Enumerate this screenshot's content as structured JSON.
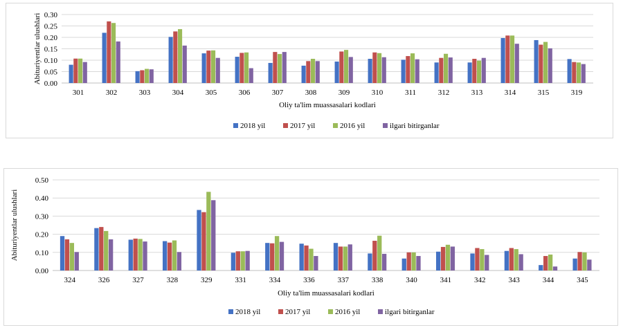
{
  "chart_data": [
    {
      "type": "bar",
      "title": "",
      "xlabel": "Oliy ta'lim muassasalari kodlari",
      "ylabel": "Abituriyentlar ulushlari",
      "ylim": [
        0,
        0.3
      ],
      "yticks": [
        "0.00",
        "0.05",
        "0.10",
        "0.15",
        "0.20",
        "0.25",
        "0.30"
      ],
      "grid": true,
      "legend_position": "bottom",
      "categories": [
        "301",
        "302",
        "303",
        "304",
        "305",
        "306",
        "307",
        "308",
        "309",
        "310",
        "311",
        "312",
        "313",
        "314",
        "315",
        "319"
      ],
      "series": [
        {
          "name": "2018 yil",
          "color": "#4472c4",
          "values": [
            0.08,
            0.22,
            0.052,
            0.202,
            0.13,
            0.115,
            0.088,
            0.076,
            0.094,
            0.106,
            0.102,
            0.09,
            0.09,
            0.197,
            0.188,
            0.105
          ]
        },
        {
          "name": "2017 yil",
          "color": "#c0504d",
          "values": [
            0.107,
            0.27,
            0.056,
            0.226,
            0.142,
            0.132,
            0.136,
            0.096,
            0.138,
            0.134,
            0.118,
            0.11,
            0.106,
            0.208,
            0.168,
            0.092
          ]
        },
        {
          "name": "2016 yil",
          "color": "#9bbb59",
          "values": [
            0.107,
            0.263,
            0.062,
            0.236,
            0.143,
            0.134,
            0.127,
            0.106,
            0.145,
            0.131,
            0.13,
            0.128,
            0.098,
            0.208,
            0.18,
            0.09
          ]
        },
        {
          "name": "ilgari bitirganlar",
          "color": "#8064a2",
          "values": [
            0.092,
            0.182,
            0.06,
            0.164,
            0.11,
            0.065,
            0.136,
            0.096,
            0.114,
            0.113,
            0.104,
            0.112,
            0.11,
            0.172,
            0.152,
            0.083
          ]
        }
      ]
    },
    {
      "type": "bar",
      "title": "",
      "xlabel": "Oliy ta'lim muassasalari kodlari",
      "ylabel": "Abituriyentlar ulushlari",
      "ylim": [
        0,
        0.5
      ],
      "yticks": [
        "0.00",
        "0.10",
        "0.20",
        "0.30",
        "0.40",
        "0.50"
      ],
      "grid": true,
      "legend_position": "bottom",
      "categories": [
        "324",
        "326",
        "327",
        "328",
        "329",
        "331",
        "334",
        "336",
        "337",
        "338",
        "340",
        "341",
        "342",
        "343",
        "344",
        "345"
      ],
      "series": [
        {
          "name": "2018 yil",
          "color": "#4472c4",
          "values": [
            0.19,
            0.234,
            0.17,
            0.162,
            0.334,
            0.098,
            0.152,
            0.148,
            0.152,
            0.094,
            0.066,
            0.104,
            0.094,
            0.108,
            0.03,
            0.066
          ]
        },
        {
          "name": "2017 yil",
          "color": "#c0504d",
          "values": [
            0.172,
            0.24,
            0.176,
            0.154,
            0.322,
            0.106,
            0.15,
            0.138,
            0.132,
            0.164,
            0.1,
            0.13,
            0.124,
            0.124,
            0.08,
            0.102
          ]
        },
        {
          "name": "2016 yil",
          "color": "#9bbb59",
          "values": [
            0.152,
            0.218,
            0.174,
            0.166,
            0.434,
            0.106,
            0.19,
            0.12,
            0.132,
            0.192,
            0.1,
            0.142,
            0.118,
            0.118,
            0.088,
            0.1
          ]
        },
        {
          "name": "ilgari bitirganlar",
          "color": "#8064a2",
          "values": [
            0.102,
            0.172,
            0.16,
            0.102,
            0.388,
            0.108,
            0.158,
            0.08,
            0.144,
            0.092,
            0.08,
            0.132,
            0.086,
            0.09,
            0.022,
            0.06
          ]
        }
      ]
    }
  ]
}
